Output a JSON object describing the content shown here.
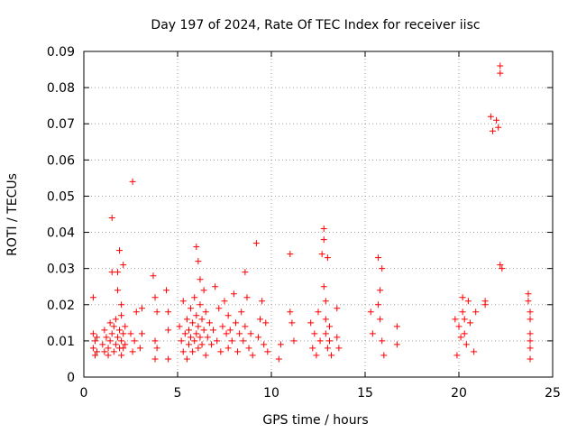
{
  "chart_data": {
    "type": "scatter",
    "title": "Day 197 of 2024, Rate Of TEC Index for receiver iisc",
    "xlabel": "GPS time / hours",
    "ylabel": "ROTI / TECUs",
    "xlim": [
      0,
      25
    ],
    "ylim": [
      0,
      0.09
    ],
    "xticks": [
      0,
      5,
      10,
      15,
      20,
      25
    ],
    "xtick_labels": [
      "0",
      "5",
      "10",
      "15",
      "20",
      "25"
    ],
    "yticks": [
      0,
      0.01,
      0.02,
      0.03,
      0.04,
      0.05,
      0.06,
      0.07,
      0.08,
      0.09
    ],
    "ytick_labels": [
      "0",
      "0.01",
      "0.02",
      "0.03",
      "0.04",
      "0.05",
      "0.06",
      "0.07",
      "0.08",
      "0.09"
    ],
    "grid": true,
    "marker": "plus",
    "color": "#ff0000",
    "series": [
      {
        "name": "ROTI",
        "points": [
          [
            0.5,
            0.022
          ],
          [
            0.5,
            0.012
          ],
          [
            0.5,
            0.008
          ],
          [
            0.6,
            0.006
          ],
          [
            0.6,
            0.01
          ],
          [
            0.7,
            0.007
          ],
          [
            0.7,
            0.011
          ],
          [
            1.0,
            0.009
          ],
          [
            1.1,
            0.013
          ],
          [
            1.1,
            0.007
          ],
          [
            1.2,
            0.011
          ],
          [
            1.3,
            0.006
          ],
          [
            1.3,
            0.008
          ],
          [
            1.4,
            0.015
          ],
          [
            1.4,
            0.01
          ],
          [
            1.5,
            0.029
          ],
          [
            1.5,
            0.012
          ],
          [
            1.5,
            0.044
          ],
          [
            1.6,
            0.007
          ],
          [
            1.6,
            0.014
          ],
          [
            1.7,
            0.009
          ],
          [
            1.7,
            0.016
          ],
          [
            1.8,
            0.011
          ],
          [
            1.8,
            0.029
          ],
          [
            1.8,
            0.024
          ],
          [
            1.9,
            0.035
          ],
          [
            1.9,
            0.013
          ],
          [
            1.9,
            0.008
          ],
          [
            2.0,
            0.02
          ],
          [
            2.0,
            0.006
          ],
          [
            2.0,
            0.01
          ],
          [
            2.0,
            0.017
          ],
          [
            2.1,
            0.031
          ],
          [
            2.1,
            0.012
          ],
          [
            2.1,
            0.008
          ],
          [
            2.2,
            0.009
          ],
          [
            2.2,
            0.014
          ],
          [
            2.5,
            0.012
          ],
          [
            2.6,
            0.054
          ],
          [
            2.6,
            0.007
          ],
          [
            2.7,
            0.01
          ],
          [
            2.8,
            0.018
          ],
          [
            3.0,
            0.008
          ],
          [
            3.1,
            0.012
          ],
          [
            3.1,
            0.019
          ],
          [
            3.7,
            0.028
          ],
          [
            3.8,
            0.022
          ],
          [
            3.8,
            0.01
          ],
          [
            3.8,
            0.005
          ],
          [
            3.9,
            0.018
          ],
          [
            3.9,
            0.008
          ],
          [
            4.4,
            0.024
          ],
          [
            4.5,
            0.013
          ],
          [
            4.5,
            0.018
          ],
          [
            4.5,
            0.005
          ],
          [
            5.1,
            0.014
          ],
          [
            5.2,
            0.01
          ],
          [
            5.3,
            0.021
          ],
          [
            5.3,
            0.007
          ],
          [
            5.4,
            0.012
          ],
          [
            5.5,
            0.016
          ],
          [
            5.5,
            0.005
          ],
          [
            5.6,
            0.009
          ],
          [
            5.6,
            0.013
          ],
          [
            5.7,
            0.011
          ],
          [
            5.7,
            0.019
          ],
          [
            5.8,
            0.007
          ],
          [
            5.8,
            0.015
          ],
          [
            5.9,
            0.022
          ],
          [
            5.9,
            0.01
          ],
          [
            6.0,
            0.036
          ],
          [
            6.0,
            0.017
          ],
          [
            6.0,
            0.012
          ],
          [
            6.1,
            0.032
          ],
          [
            6.1,
            0.008
          ],
          [
            6.1,
            0.014
          ],
          [
            6.2,
            0.027
          ],
          [
            6.2,
            0.011
          ],
          [
            6.2,
            0.02
          ],
          [
            6.3,
            0.016
          ],
          [
            6.3,
            0.009
          ],
          [
            6.4,
            0.024
          ],
          [
            6.4,
            0.013
          ],
          [
            6.5,
            0.006
          ],
          [
            6.5,
            0.018
          ],
          [
            6.6,
            0.011
          ],
          [
            6.7,
            0.015
          ],
          [
            6.8,
            0.009
          ],
          [
            6.9,
            0.013
          ],
          [
            7.0,
            0.025
          ],
          [
            7.1,
            0.01
          ],
          [
            7.2,
            0.019
          ],
          [
            7.3,
            0.007
          ],
          [
            7.4,
            0.014
          ],
          [
            7.5,
            0.021
          ],
          [
            7.6,
            0.012
          ],
          [
            7.7,
            0.008
          ],
          [
            7.7,
            0.017
          ],
          [
            7.8,
            0.013
          ],
          [
            7.9,
            0.01
          ],
          [
            8.0,
            0.023
          ],
          [
            8.1,
            0.015
          ],
          [
            8.2,
            0.007
          ],
          [
            8.3,
            0.012
          ],
          [
            8.4,
            0.018
          ],
          [
            8.5,
            0.01
          ],
          [
            8.6,
            0.029
          ],
          [
            8.6,
            0.014
          ],
          [
            8.7,
            0.022
          ],
          [
            8.8,
            0.008
          ],
          [
            8.9,
            0.012
          ],
          [
            9.0,
            0.006
          ],
          [
            9.2,
            0.037
          ],
          [
            9.3,
            0.011
          ],
          [
            9.4,
            0.016
          ],
          [
            9.5,
            0.021
          ],
          [
            9.6,
            0.009
          ],
          [
            9.7,
            0.015
          ],
          [
            9.8,
            0.007
          ],
          [
            10.4,
            0.005
          ],
          [
            10.5,
            0.009
          ],
          [
            11.0,
            0.034
          ],
          [
            11.0,
            0.018
          ],
          [
            11.1,
            0.015
          ],
          [
            11.2,
            0.01
          ],
          [
            12.1,
            0.015
          ],
          [
            12.2,
            0.008
          ],
          [
            12.3,
            0.012
          ],
          [
            12.4,
            0.006
          ],
          [
            12.5,
            0.018
          ],
          [
            12.6,
            0.01
          ],
          [
            12.7,
            0.034
          ],
          [
            12.8,
            0.041
          ],
          [
            12.8,
            0.038
          ],
          [
            12.8,
            0.025
          ],
          [
            12.9,
            0.021
          ],
          [
            12.9,
            0.016
          ],
          [
            12.9,
            0.012
          ],
          [
            13.0,
            0.008
          ],
          [
            13.0,
            0.033
          ],
          [
            13.1,
            0.014
          ],
          [
            13.1,
            0.01
          ],
          [
            13.2,
            0.006
          ],
          [
            13.5,
            0.019
          ],
          [
            13.5,
            0.011
          ],
          [
            13.6,
            0.008
          ],
          [
            15.3,
            0.018
          ],
          [
            15.4,
            0.012
          ],
          [
            15.7,
            0.033
          ],
          [
            15.7,
            0.02
          ],
          [
            15.8,
            0.024
          ],
          [
            15.8,
            0.016
          ],
          [
            15.9,
            0.03
          ],
          [
            15.9,
            0.01
          ],
          [
            16.0,
            0.006
          ],
          [
            16.7,
            0.014
          ],
          [
            16.7,
            0.009
          ],
          [
            19.8,
            0.016
          ],
          [
            19.9,
            0.006
          ],
          [
            20.0,
            0.014
          ],
          [
            20.1,
            0.011
          ],
          [
            20.2,
            0.022
          ],
          [
            20.2,
            0.018
          ],
          [
            20.3,
            0.016
          ],
          [
            20.3,
            0.012
          ],
          [
            20.4,
            0.009
          ],
          [
            20.5,
            0.021
          ],
          [
            20.6,
            0.015
          ],
          [
            20.8,
            0.007
          ],
          [
            20.9,
            0.018
          ],
          [
            21.4,
            0.021
          ],
          [
            21.4,
            0.02
          ],
          [
            21.7,
            0.072
          ],
          [
            21.8,
            0.068
          ],
          [
            22.0,
            0.071
          ],
          [
            22.1,
            0.069
          ],
          [
            22.2,
            0.086
          ],
          [
            22.2,
            0.084
          ],
          [
            22.2,
            0.031
          ],
          [
            22.3,
            0.03
          ],
          [
            23.7,
            0.023
          ],
          [
            23.7,
            0.021
          ],
          [
            23.8,
            0.018
          ],
          [
            23.8,
            0.016
          ],
          [
            23.8,
            0.012
          ],
          [
            23.8,
            0.01
          ],
          [
            23.8,
            0.008
          ],
          [
            23.8,
            0.005
          ]
        ]
      }
    ]
  }
}
